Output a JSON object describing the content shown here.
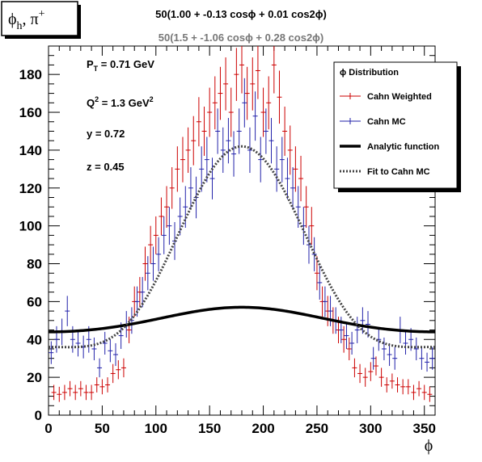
{
  "chart_data": {
    "type": "scatter",
    "title": "ϕ",
    "title_sub": "h",
    "title_rest": ", π",
    "title_sup": "+",
    "header_primary": "50(1.00 + -0.13 cosϕ + 0.01 cos2ϕ)",
    "header_secondary": "50(1.5 + -1.06 cosϕ + 0.28 cos2ϕ)",
    "xlabel": "ϕ",
    "ylabel": "",
    "xlim": [
      0,
      360
    ],
    "ylim": [
      0,
      195
    ],
    "xticks": [
      0,
      50,
      100,
      150,
      200,
      250,
      300,
      350
    ],
    "yticks": [
      0,
      20,
      40,
      60,
      80,
      100,
      120,
      140,
      160,
      180
    ],
    "annotations": [
      {
        "id": "pt",
        "base": "P",
        "sub": "T",
        "rest": " = 0.71 GeV"
      },
      {
        "id": "q2",
        "base": "Q",
        "sup": "2",
        "rest": " = 1.3 GeV",
        "sup2": "2"
      },
      {
        "id": "y",
        "base": "y = 0.72"
      },
      {
        "id": "z",
        "base": "z = 0.45"
      }
    ],
    "legend": {
      "placement": "top-right",
      "header": "ϕ Distribution",
      "entries": [
        {
          "label": "Cahn Weighted",
          "color": "#cc0000",
          "style": "errorbar"
        },
        {
          "label": "Cahn MC",
          "color": "#2222aa",
          "style": "errorbar"
        },
        {
          "label": "Analytic function",
          "color": "#000000",
          "style": "thick"
        },
        {
          "label": "Fit to Cahn MC",
          "color": "#444444",
          "style": "dotted"
        }
      ]
    },
    "series": [
      {
        "name": "Cahn Weighted",
        "color": "#cc0000",
        "x": [
          5,
          10,
          15,
          20,
          25,
          30,
          35,
          40,
          45,
          50,
          55,
          60,
          65,
          70,
          75,
          80,
          85,
          90,
          95,
          100,
          105,
          110,
          115,
          120,
          125,
          130,
          135,
          140,
          145,
          150,
          155,
          160,
          165,
          170,
          175,
          180,
          185,
          190,
          195,
          200,
          205,
          210,
          215,
          220,
          225,
          230,
          235,
          240,
          245,
          250,
          255,
          260,
          265,
          270,
          275,
          280,
          285,
          290,
          295,
          300,
          305,
          310,
          315,
          320,
          325,
          330,
          335,
          340,
          345,
          350,
          355
        ],
        "y": [
          12,
          11,
          12,
          14,
          12,
          14,
          12,
          12,
          16,
          15,
          16,
          22,
          24,
          25,
          45,
          60,
          65,
          80,
          90,
          95,
          105,
          110,
          120,
          130,
          135,
          140,
          145,
          155,
          150,
          160,
          165,
          170,
          175,
          160,
          180,
          185,
          170,
          175,
          182,
          160,
          165,
          185,
          168,
          150,
          140,
          130,
          125,
          110,
          100,
          75,
          60,
          55,
          50,
          45,
          40,
          35,
          25,
          22,
          20,
          23,
          26,
          20,
          16,
          18,
          16,
          15,
          15,
          12,
          14,
          12,
          11
        ],
        "err": [
          4,
          4,
          4,
          4,
          4,
          4,
          4,
          4,
          4,
          4,
          4,
          5,
          5,
          5,
          7,
          8,
          8,
          9,
          10,
          10,
          10,
          11,
          11,
          12,
          12,
          12,
          13,
          13,
          13,
          13,
          14,
          14,
          14,
          13,
          14,
          15,
          14,
          14,
          15,
          13,
          14,
          15,
          14,
          13,
          13,
          12,
          12,
          11,
          10,
          9,
          8,
          8,
          7,
          7,
          7,
          6,
          5,
          5,
          5,
          5,
          5,
          5,
          4,
          4,
          4,
          4,
          4,
          4,
          4,
          4,
          4
        ]
      },
      {
        "name": "Cahn MC",
        "color": "#2222aa",
        "x": [
          2.5,
          7.5,
          12.5,
          17.5,
          22.5,
          27.5,
          32.5,
          37.5,
          42.5,
          47.5,
          52.5,
          57.5,
          62.5,
          67.5,
          72.5,
          77.5,
          82.5,
          87.5,
          92.5,
          97.5,
          102.5,
          107.5,
          112.5,
          117.5,
          122.5,
          127.5,
          132.5,
          137.5,
          142.5,
          147.5,
          152.5,
          157.5,
          162.5,
          167.5,
          172.5,
          177.5,
          182.5,
          187.5,
          192.5,
          197.5,
          202.5,
          207.5,
          212.5,
          217.5,
          222.5,
          227.5,
          232.5,
          237.5,
          242.5,
          247.5,
          252.5,
          257.5,
          262.5,
          267.5,
          272.5,
          277.5,
          282.5,
          287.5,
          292.5,
          297.5,
          302.5,
          307.5,
          312.5,
          317.5,
          322.5,
          327.5,
          332.5,
          337.5,
          342.5,
          347.5,
          352.5,
          357.5
        ],
        "y": [
          33,
          40,
          44,
          55,
          40,
          38,
          36,
          40,
          35,
          25,
          38,
          34,
          32,
          42,
          48,
          50,
          60,
          65,
          75,
          80,
          85,
          95,
          100,
          92,
          105,
          110,
          120,
          115,
          130,
          135,
          125,
          150,
          140,
          145,
          138,
          150,
          165,
          140,
          158,
          135,
          150,
          145,
          130,
          135,
          125,
          120,
          110,
          100,
          90,
          85,
          70,
          60,
          55,
          50,
          45,
          42,
          38,
          45,
          50,
          48,
          30,
          40,
          35,
          32,
          30,
          45,
          38,
          40,
          35,
          30,
          28,
          30
        ],
        "err": [
          6,
          7,
          7,
          8,
          7,
          7,
          6,
          7,
          6,
          5,
          6,
          6,
          6,
          7,
          7,
          7,
          8,
          8,
          9,
          9,
          9,
          10,
          10,
          10,
          10,
          11,
          11,
          11,
          12,
          12,
          11,
          12,
          12,
          12,
          12,
          12,
          13,
          12,
          13,
          12,
          12,
          12,
          12,
          12,
          11,
          11,
          11,
          10,
          10,
          9,
          9,
          8,
          8,
          7,
          7,
          7,
          6,
          7,
          7,
          7,
          6,
          6,
          6,
          6,
          6,
          7,
          6,
          6,
          6,
          6,
          5,
          6
        ]
      }
    ],
    "curves": [
      {
        "name": "Analytic function",
        "a": 1.0,
        "b": -0.13,
        "c": 0.01,
        "scale": 50,
        "color": "#000000",
        "style": "thick"
      },
      {
        "name": "Fit to Cahn MC",
        "a": 1.5,
        "b": -1.06,
        "c": 0.28,
        "scale": 50,
        "color": "#444444",
        "style": "dotted"
      }
    ]
  }
}
